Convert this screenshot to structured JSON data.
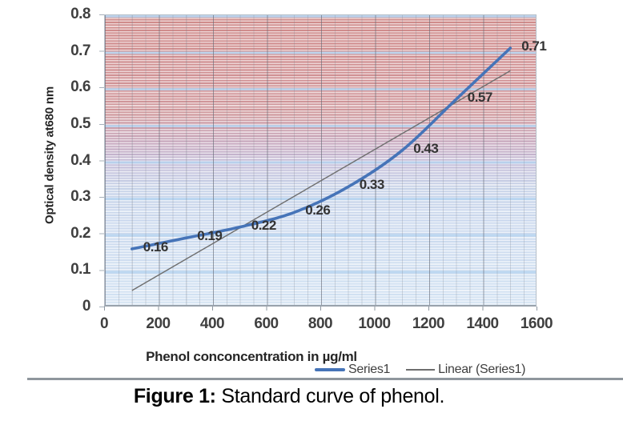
{
  "figure": {
    "caption_bold": "Figure 1:",
    "caption_text": " Standard curve of phenol."
  },
  "chart_data": {
    "type": "line",
    "title": "",
    "xlabel": "Phenol conconcentration in µg/ml",
    "ylabel": "Optical density at680 nm",
    "xlim": [
      0,
      1600
    ],
    "ylim": [
      0,
      0.8
    ],
    "xticks": [
      "0",
      "200",
      "400",
      "600",
      "800",
      "1000",
      "1200",
      "1400",
      "1600"
    ],
    "yticks": [
      "0",
      "0.1",
      "0.2",
      "0.3",
      "0.4",
      "0.5",
      "0.6",
      "0.7",
      "0.8"
    ],
    "grid": "major and minor gridlines on, striped red-to-blue plot fill",
    "legend_position": "bottom-right",
    "x": [
      100,
      300,
      500,
      700,
      900,
      1100,
      1300,
      1500
    ],
    "series": [
      {
        "name": "Series1",
        "type": "smooth-line",
        "color": "#4674b8",
        "values": [
          0.16,
          0.19,
          0.22,
          0.26,
          0.33,
          0.43,
          0.57,
          0.71
        ],
        "data_labels": [
          "0.16",
          "0.19",
          "0.22",
          "0.26",
          "0.33",
          "0.43",
          "0.57",
          "0.71"
        ]
      },
      {
        "name": "Linear (Series1)",
        "type": "trendline",
        "color": "#6e6e6e",
        "points": [
          [
            100,
            0.046
          ],
          [
            1500,
            0.648
          ]
        ]
      }
    ]
  },
  "colors": {
    "series_blue": "#4674b8",
    "trendline_gray": "#6e6e6e",
    "tick_text": "#3f3f3f",
    "plot_top_red": "#d08b8a",
    "plot_bottom_blue": "#d2e2f2",
    "band_blue": "#bdd7ee"
  }
}
